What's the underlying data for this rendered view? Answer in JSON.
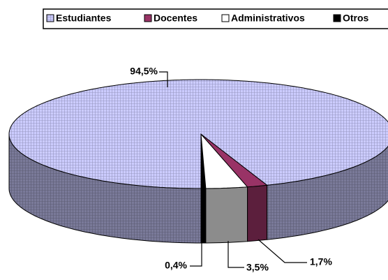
{
  "chart_data": {
    "type": "pie3d",
    "series": [
      {
        "name": "Estudiantes",
        "color": "#ccccff",
        "values": [
          94.5
        ],
        "value_labels": [
          "94,5%"
        ]
      },
      {
        "name": "Docentes",
        "color": "#993366",
        "values": [
          1.7
        ],
        "value_labels": [
          "1,7%"
        ]
      },
      {
        "name": "Administrativos",
        "color": "#ffffff",
        "values": [
          3.5
        ],
        "value_labels": [
          "3,5%"
        ]
      },
      {
        "name": "Otros",
        "color": "#000000",
        "values": [
          0.4
        ],
        "value_labels": [
          "0,4%"
        ]
      }
    ],
    "legend": "top"
  }
}
